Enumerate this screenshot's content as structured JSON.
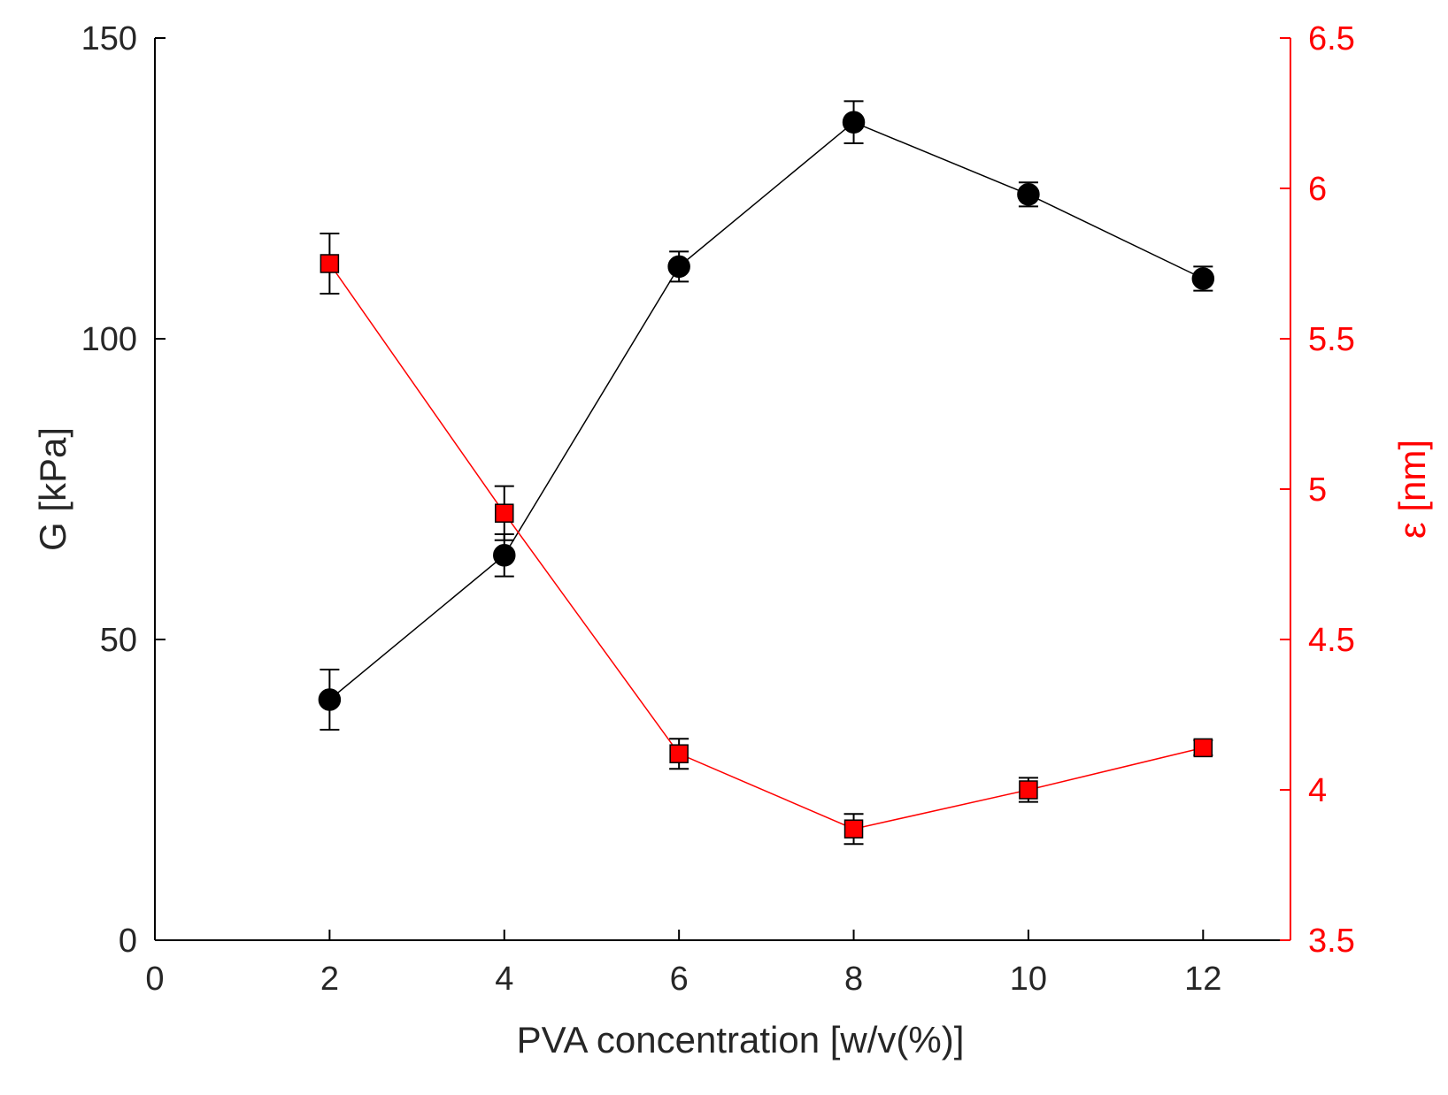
{
  "chart_data": {
    "type": "line",
    "title": "",
    "xlabel": "PVA concentration [w/v(%)]",
    "ylabel_left": "G [kPa]",
    "ylabel_right": "ε [nm]",
    "xlim": [
      0,
      13
    ],
    "ylim_left": [
      0,
      150
    ],
    "ylim_right": [
      3.5,
      6.5
    ],
    "x_ticks": [
      0,
      2,
      4,
      6,
      8,
      10,
      12
    ],
    "x_tick_labels": [
      "0",
      "2",
      "4",
      "6",
      "8",
      "10",
      "12"
    ],
    "y_left_ticks": [
      0,
      50,
      100,
      150
    ],
    "y_left_tick_labels": [
      "0",
      "50",
      "100",
      "150"
    ],
    "y_right_ticks": [
      3.5,
      4,
      4.5,
      5,
      5.5,
      6,
      6.5
    ],
    "y_right_tick_labels": [
      "3.5",
      "4",
      "4.5",
      "5",
      "5.5",
      "6",
      "6.5"
    ],
    "grid": false,
    "series": [
      {
        "name": "G",
        "axis": "left",
        "color": "#000000",
        "marker": "circle",
        "x": [
          2,
          4,
          6,
          8,
          10,
          12
        ],
        "values": [
          40,
          64,
          112,
          136,
          124,
          110
        ],
        "errors": [
          5,
          3.5,
          2.5,
          3.5,
          2,
          2
        ]
      },
      {
        "name": "ε",
        "axis": "right",
        "color": "#ff0000",
        "marker": "square",
        "x": [
          2,
          4,
          6,
          8,
          10,
          12
        ],
        "values": [
          5.75,
          4.92,
          4.12,
          3.87,
          4.0,
          4.14
        ],
        "errors": [
          0.1,
          0.09,
          0.05,
          0.05,
          0.04,
          0.025
        ]
      }
    ]
  }
}
